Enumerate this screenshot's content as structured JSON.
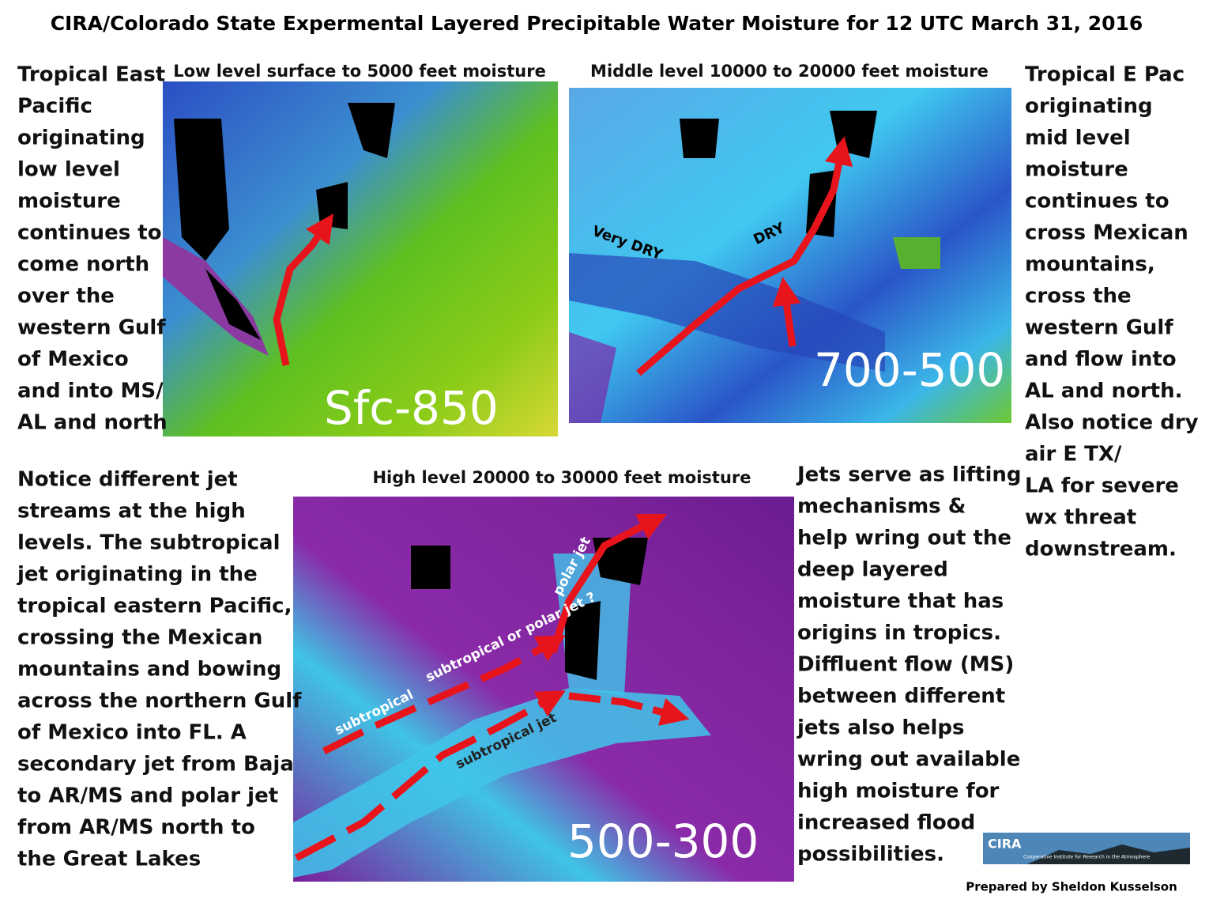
{
  "title": "CIRA/Colorado State Expermental Layered Precipitable Water Moisture for 12 UTC March 31, 2016",
  "panels": [
    {
      "caption": "Low level surface to 5000 feet moisture",
      "labels": [
        "Sfc-850"
      ]
    },
    {
      "caption": "Middle level 10000 to 20000 feet moisture",
      "labels": [
        "Very  DRY",
        "DRY",
        "700-500"
      ]
    },
    {
      "caption": "High level 20000 to 30000 feet moisture",
      "labels": [
        "polar jet",
        "subtropical  or polar jet ?",
        "subtropical",
        "subtropical jet",
        "500-300"
      ]
    }
  ],
  "text_blocks": [
    {
      "lines": [
        "Tropical East",
        "Pacific",
        "originating",
        "low level",
        "moisture",
        "continues to",
        "come north",
        "over the",
        "western Gulf",
        "of Mexico",
        "and into MS/",
        "AL and north"
      ]
    },
    {
      "lines": [
        "Tropical E Pac",
        "originating",
        "mid level",
        "moisture",
        "continues to",
        "cross Mexican",
        "mountains,",
        "cross the",
        "western Gulf",
        "and flow into",
        "AL and north.",
        "Also notice dry",
        "air E TX/",
        "LA for severe",
        "wx threat",
        "downstream."
      ]
    },
    {
      "lines": [
        "Notice different jet",
        "streams at the high",
        "levels. The subtropical",
        "jet originating in the",
        "tropical eastern Pacific,",
        "crossing the Mexican",
        "mountains and bowing",
        "across the northern Gulf",
        "of Mexico into FL. A",
        "secondary jet from Baja",
        "to AR/MS and polar jet",
        "from AR/MS north to",
        "the Great Lakes"
      ]
    },
    {
      "lines": [
        "Jets serve as lifting",
        "mechanisms &",
        "help wring out the",
        "deep layered",
        "moisture that has",
        "origins in tropics.",
        "Diffluent flow (MS)",
        "between different",
        "jets also helps",
        "wring out available",
        "high moisture for",
        "increased flood",
        "possibilities."
      ]
    }
  ],
  "logo": {
    "name": "CIRA",
    "subtitle": "Cooperative Institute for Research in the Atmosphere"
  },
  "credit": "Prepared by Sheldon Kusselson"
}
